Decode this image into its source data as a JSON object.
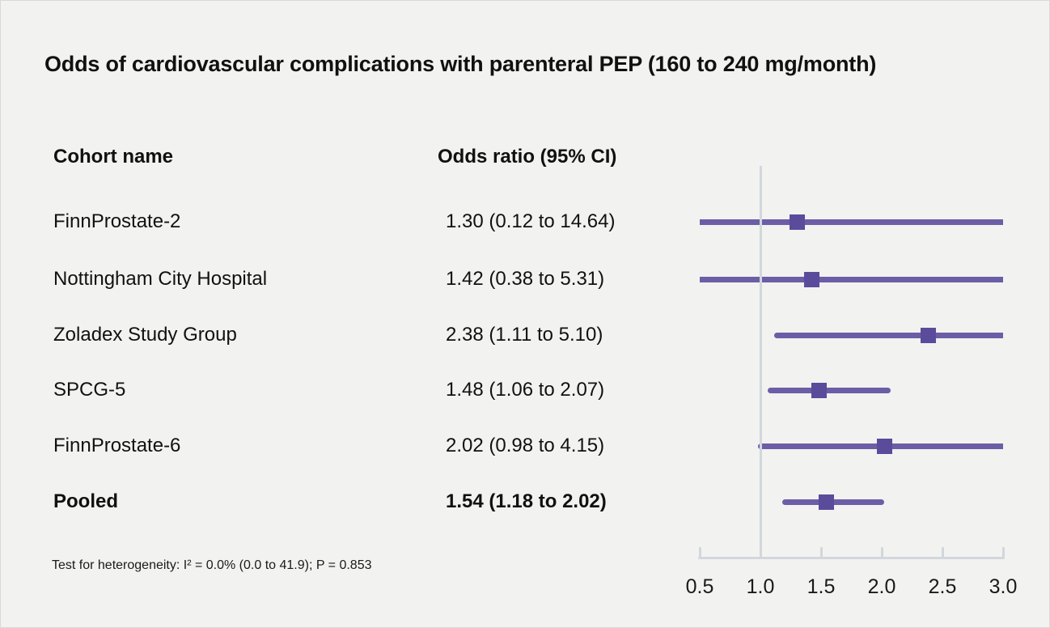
{
  "title": "Odds of cardiovascular complications with parenteral PEP (160 to 240 mg/month)",
  "chart_data": {
    "type": "forest",
    "title": "Odds of cardiovascular complications with parenteral PEP (160 to 240 mg/month)",
    "columns": [
      "Cohort name",
      "Odds ratio (95% CI)"
    ],
    "rows": [
      {
        "label": "FinnProstate-2",
        "or_text": "1.30 (0.12 to 14.64)",
        "or": 1.3,
        "lo": 0.12,
        "hi": 14.64,
        "bold": false
      },
      {
        "label": "Nottingham City Hospital",
        "or_text": "1.42 (0.38 to 5.31)",
        "or": 1.42,
        "lo": 0.38,
        "hi": 5.31,
        "bold": false
      },
      {
        "label": "Zoladex Study Group",
        "or_text": "2.38 (1.11 to 5.10)",
        "or": 2.38,
        "lo": 1.11,
        "hi": 5.1,
        "bold": false
      },
      {
        "label": "SPCG-5",
        "or_text": "1.48 (1.06 to 2.07)",
        "or": 1.48,
        "lo": 1.06,
        "hi": 2.07,
        "bold": false
      },
      {
        "label": "FinnProstate-6",
        "or_text": "2.02 (0.98 to 4.15)",
        "or": 2.02,
        "lo": 0.98,
        "hi": 4.15,
        "bold": false
      },
      {
        "label": "Pooled",
        "or_text": "1.54 (1.18 to 2.02)",
        "or": 1.54,
        "lo": 1.18,
        "hi": 2.02,
        "bold": true
      }
    ],
    "x_axis": {
      "min": 0.5,
      "max": 3.0,
      "ticks": [
        "0.5",
        "1.0",
        "1.5",
        "2.0",
        "2.5",
        "3.0"
      ],
      "reference_line": 1.0
    },
    "footnote": "Test for heterogeneity: I² = 0.0% (0.0 to 41.9); P = 0.853",
    "colors": {
      "ci_line": "#6c5ea6",
      "marker": "#5a4b9b",
      "axis": "#d2d7dd",
      "background": "#f2f2f0",
      "text": "#111111"
    }
  }
}
